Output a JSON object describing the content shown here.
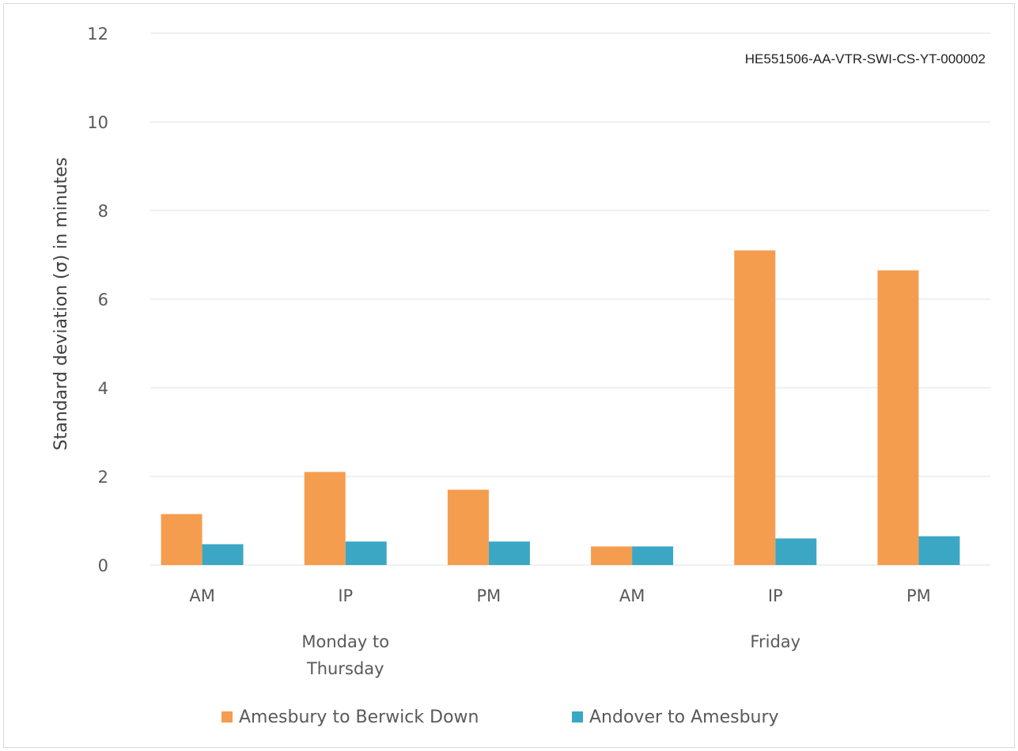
{
  "document_ref": "HE551506-AA-VTR-SWI-CS-YT-000002",
  "colors": {
    "amesbury_berwick": "#F59D4E",
    "andover_amesbury": "#3BA7C4",
    "grid": "#e0e0e0",
    "text": "#595959"
  },
  "chart_data": {
    "type": "bar",
    "title": "",
    "ylabel": "Standard deviation (σ) in minutes",
    "xlabel": "",
    "ylim": [
      0,
      12
    ],
    "yticks": [
      0,
      2,
      4,
      6,
      8,
      10,
      12
    ],
    "grid": true,
    "legend_position": "bottom",
    "categories": [
      "AM",
      "IP",
      "PM",
      "AM",
      "IP",
      "PM"
    ],
    "groups": [
      {
        "label_lines": [
          "Monday to",
          "Thursday"
        ],
        "categories": [
          "AM",
          "IP",
          "PM"
        ]
      },
      {
        "label_lines": [
          "Friday"
        ],
        "categories": [
          "AM",
          "IP",
          "PM"
        ]
      }
    ],
    "series": [
      {
        "name": "Amesbury to Berwick Down",
        "values": [
          1.15,
          2.1,
          1.7,
          0.42,
          7.1,
          6.65
        ]
      },
      {
        "name": "Andover to Amesbury",
        "values": [
          0.47,
          0.53,
          0.53,
          0.42,
          0.6,
          0.65
        ]
      }
    ]
  }
}
